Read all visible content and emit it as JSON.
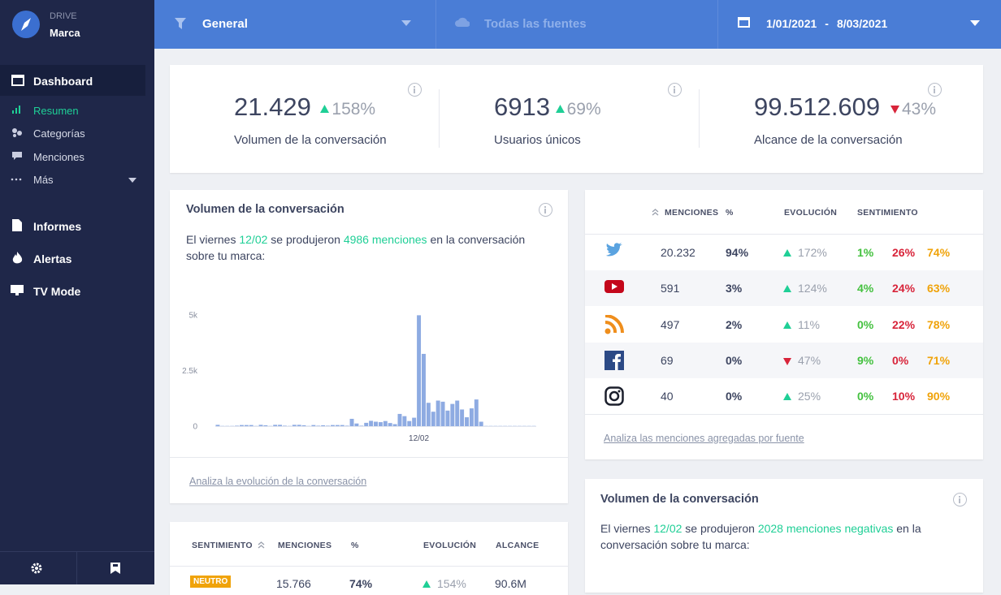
{
  "sidebar": {
    "brand": "DRIVE",
    "account": "Marca",
    "nav": [
      "Dashboard",
      "Resumen",
      "Categorías",
      "Menciones",
      "Más",
      "Informes",
      "Alertas",
      "TV Mode"
    ]
  },
  "topbar": {
    "filter": "General",
    "sources": "Todas las fuentes",
    "date_from": "1/01/2021",
    "date_separator": "-",
    "date_to": "8/03/2021"
  },
  "kpis": [
    {
      "value": "21.429",
      "trend": "up",
      "change": "158%",
      "label": "Volumen de la conversación"
    },
    {
      "value": "6913",
      "trend": "up",
      "change": "69%",
      "label": "Usuarios únicos"
    },
    {
      "value": "99.512.609",
      "trend": "down",
      "change": "43%",
      "label": "Alcance de la conversación"
    }
  ],
  "volume_card": {
    "title": "Volumen de la conversación",
    "text": [
      "El viernes ",
      "12/02",
      " se produjeron ",
      "4986 menciones",
      " en la conversación sobre tu marca:"
    ],
    "link": "Analiza la evolución de la conversación"
  },
  "chart_data": {
    "type": "bar",
    "color": "#8eabe2",
    "ylim": [
      0,
      5000
    ],
    "yticks": [
      0,
      {
        "value": 2500,
        "label": "2.5k"
      },
      {
        "value": 5000,
        "label": "5k"
      }
    ],
    "grid": false,
    "categories": [
      null,
      null,
      null,
      null,
      null,
      null,
      null,
      null,
      null,
      null,
      null,
      null,
      null,
      null,
      null,
      null,
      null,
      null,
      null,
      null,
      null,
      null,
      null,
      null,
      null,
      null,
      null,
      null,
      null,
      null,
      null,
      null,
      null,
      null,
      null,
      null,
      null,
      null,
      null,
      null,
      null,
      null,
      "12/02",
      null,
      null,
      null,
      null,
      null,
      null,
      null,
      null,
      null,
      null,
      null,
      null,
      null,
      null,
      null,
      null,
      null,
      null,
      null,
      null,
      null,
      null,
      null,
      null
    ],
    "values": [
      60,
      10,
      10,
      10,
      20,
      50,
      50,
      50,
      10,
      60,
      40,
      10,
      60,
      60,
      20,
      10,
      60,
      60,
      40,
      10,
      50,
      20,
      40,
      20,
      50,
      50,
      50,
      20,
      330,
      120,
      20,
      150,
      240,
      200,
      180,
      230,
      140,
      90,
      550,
      450,
      230,
      380,
      4986,
      3250,
      1050,
      650,
      1150,
      1100,
      700,
      1000,
      1150,
      750,
      400,
      800,
      1200,
      200,
      10,
      10,
      10,
      10,
      10,
      10,
      10,
      10,
      10,
      10,
      10
    ]
  },
  "sources_table": {
    "headers": [
      "MENCIONES",
      "%",
      "EVOLUCIÓN",
      "SENTIMIENTO"
    ],
    "rows": [
      {
        "mentions": "20.232",
        "share": "94%",
        "trend": "up",
        "evolution": "172%",
        "sentiment": [
          "1%",
          "26%",
          "74%"
        ]
      },
      {
        "mentions": "591",
        "share": "3%",
        "trend": "up",
        "evolution": "124%",
        "sentiment": [
          "4%",
          "24%",
          "63%"
        ]
      },
      {
        "mentions": "497",
        "share": "2%",
        "trend": "up",
        "evolution": "11%",
        "sentiment": [
          "0%",
          "22%",
          "78%"
        ]
      },
      {
        "mentions": "69",
        "share": "0%",
        "trend": "down",
        "evolution": "47%",
        "sentiment": [
          "9%",
          "0%",
          "71%"
        ]
      },
      {
        "mentions": "40",
        "share": "0%",
        "trend": "up",
        "evolution": "25%",
        "sentiment": [
          "0%",
          "10%",
          "90%"
        ]
      }
    ],
    "link": "Analiza las menciones agregadas por fuente"
  },
  "negative_card": {
    "title": "Volumen de la conversación",
    "text": [
      "El viernes ",
      "12/02",
      " se produjeron ",
      "2028 menciones negativas",
      " en la conversación sobre tu marca:"
    ]
  },
  "sentiment_table": {
    "headers": [
      "SENTIMIENTO",
      "MENCIONES",
      "%",
      "EVOLUCIÓN",
      "ALCANCE"
    ],
    "rows": [
      {
        "sentiment": "NEUTRO",
        "mentions": "15.766",
        "share": "74%",
        "trend": "up",
        "evolution": "154%",
        "reach": "90.6M"
      }
    ]
  }
}
